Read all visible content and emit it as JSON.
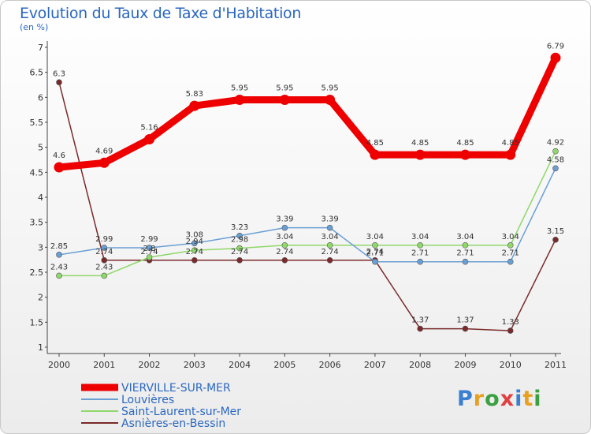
{
  "chart_data": {
    "type": "line",
    "title": "Evolution du Taux de Taxe d'Habitation",
    "subtitle": "(en %)",
    "x": [
      "2000",
      "2001",
      "2002",
      "2003",
      "2004",
      "2005",
      "2006",
      "2007",
      "2008",
      "2009",
      "2010",
      "2011"
    ],
    "ylim": [
      1,
      7
    ],
    "yticks": [
      "1",
      "1.5",
      "2",
      "2.5",
      "3",
      "3.5",
      "4",
      "4.5",
      "5",
      "5.5",
      "6",
      "6.5",
      "7"
    ],
    "legend_position": "bottom-left",
    "grid": false,
    "series": [
      {
        "name": "VIERVILLE-SUR-MER",
        "color": "#ee0000",
        "values": [
          4.6,
          4.69,
          5.16,
          5.83,
          5.95,
          5.95,
          5.95,
          4.85,
          4.85,
          4.85,
          4.85,
          6.79
        ],
        "labels": [
          "4.6",
          "4.69",
          "5.16",
          "5.83",
          "5.95",
          "5.95",
          "5.95",
          "4.85",
          "4.85",
          "4.85",
          "4.85",
          "6.79"
        ]
      },
      {
        "name": "Louvières",
        "color": "#6a9fd4",
        "values": [
          2.85,
          2.99,
          2.99,
          3.08,
          3.23,
          3.39,
          3.39,
          2.71,
          2.71,
          2.71,
          2.71,
          4.58
        ],
        "labels": [
          "2.85",
          "2.99",
          "2.99",
          "3.08",
          "3.23",
          "3.39",
          "3.39",
          "2.71",
          "2.71",
          "2.71",
          "2.71",
          "4.58"
        ]
      },
      {
        "name": "Saint-Laurent-sur-Mer",
        "color": "#8fd86a",
        "values": [
          2.43,
          2.43,
          2.8,
          2.94,
          2.98,
          3.04,
          3.04,
          3.04,
          3.04,
          3.04,
          3.04,
          4.92
        ],
        "labels": [
          "2.43",
          "2.43",
          "2.8",
          "2.94",
          "2.98",
          "3.04",
          "3.04",
          "3.04",
          "3.04",
          "3.04",
          "3.04",
          "4.92"
        ]
      },
      {
        "name": "Asnières-en-Bessin",
        "color": "#7a2a2a",
        "values": [
          6.3,
          2.74,
          2.74,
          2.74,
          2.74,
          2.74,
          2.74,
          2.74,
          1.37,
          1.37,
          1.33,
          3.15
        ],
        "labels": [
          "6.3",
          "2.74",
          "2.74",
          "2.74",
          "2.74",
          "2.74",
          "2.74",
          "2.74",
          "1.37",
          "1.37",
          "1.33",
          "3.15"
        ]
      }
    ]
  },
  "brand": {
    "letters": [
      "P",
      "r",
      "o",
      "x",
      "i",
      "t",
      "i"
    ],
    "colors": [
      "#3a7fd0",
      "#e8a020",
      "#3aa040",
      "#e04040",
      "#3a7fd0",
      "#e8a020",
      "#3aa040"
    ]
  }
}
